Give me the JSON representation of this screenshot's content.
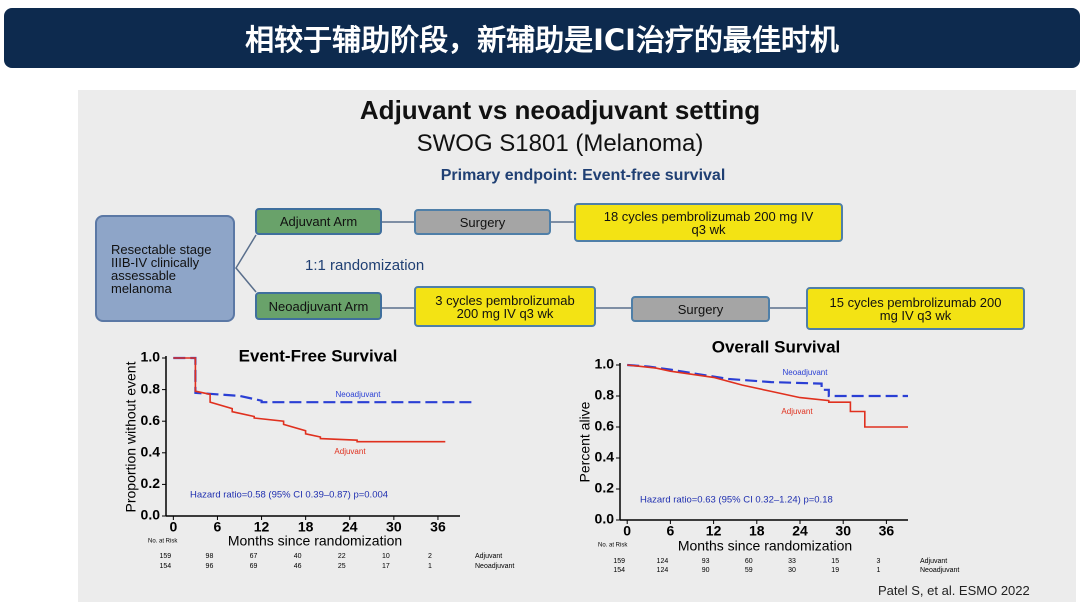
{
  "header": {
    "title": "相较于辅助阶段，新辅助是ICI治疗的最佳时机"
  },
  "slide": {
    "title": "Adjuvant vs neoadjuvant setting",
    "subtitle": "SWOG S1801 (Melanoma)",
    "endpoint": "Primary endpoint: Event-free survival",
    "citation": "Patel S, et al. ESMO 2022"
  },
  "diagram": {
    "population": "Resectable stage IIIB-IV clinically assessable melanoma",
    "randomization": "1:1 randomization",
    "adjuvant": [
      "Adjuvant Arm",
      "Surgery",
      "18 cycles pembrolizumab 200 mg IV q3 wk"
    ],
    "neoadjuvant": [
      "Neoadjuvant Arm",
      "3 cycles pembrolizumab 200 mg IV q3 wk",
      "Surgery",
      "15 cycles pembrolizumab 200 mg IV q3 wk"
    ]
  },
  "chart_data": [
    {
      "type": "line",
      "title": "Event-Free Survival",
      "x_label": "Months since randomization",
      "y_label": "Proportion without event",
      "annotation": "Hazard ratio=0.58 (95% CI 0.39–0.87) p=0.004",
      "xlim": [
        -1,
        39
      ],
      "xticks": [
        0,
        6,
        12,
        18,
        24,
        30,
        36
      ],
      "ylim": [
        0,
        1
      ],
      "yticks": [
        {
          "value": 0,
          "label": "0.0"
        },
        0.2,
        0.4,
        0.6,
        0.8,
        {
          "value": 1,
          "label": "1.0"
        }
      ],
      "series": [
        {
          "name": "Neoadjuvant",
          "color": "#2a3fd4",
          "line_style": "dashed",
          "x": [
            0,
            3,
            3,
            9,
            9,
            12,
            12,
            41
          ],
          "values": [
            1,
            1,
            0.78,
            0.76,
            0.76,
            0.73,
            0.72,
            0.72
          ]
        },
        {
          "name": "Adjuvant",
          "color": "#e0301e",
          "line_style": "solid",
          "x": [
            0,
            3,
            3,
            5,
            5,
            8,
            8,
            11,
            11,
            15,
            15,
            18,
            18,
            20,
            20,
            25,
            25,
            37
          ],
          "values": [
            1,
            1,
            0.79,
            0.77,
            0.72,
            0.68,
            0.66,
            0.63,
            0.62,
            0.6,
            0.58,
            0.54,
            0.52,
            0.5,
            0.49,
            0.48,
            0.47,
            0.47
          ]
        }
      ],
      "at_risk": {
        "label": "No. at Risk",
        "rows": [
          {
            "name": "Adjuvant",
            "counts": [
              159,
              98,
              67,
              40,
              22,
              10,
              2
            ]
          },
          {
            "name": "Neoadjuvant",
            "counts": [
              154,
              96,
              69,
              46,
              25,
              17,
              1
            ]
          }
        ]
      }
    },
    {
      "type": "line",
      "title": "Overall Survival",
      "x_label": "Months since randomization",
      "y_label": "Percent alive",
      "annotation": "Hazard ratio=0.63 (95% CI 0.32–1.24) p=0.18",
      "xlim": [
        -1,
        39
      ],
      "xticks": [
        0,
        6,
        12,
        18,
        24,
        30,
        36
      ],
      "ylim": [
        0,
        1
      ],
      "yticks": [
        {
          "value": 0,
          "label": "0.0"
        },
        0.2,
        0.4,
        0.6,
        0.8,
        {
          "value": 1,
          "label": "1.0"
        }
      ],
      "series": [
        {
          "name": "Neoadjuvant",
          "color": "#2a3fd4",
          "line_style": "dashed",
          "x": [
            0,
            3,
            6,
            10,
            14,
            20,
            27,
            27,
            28,
            28,
            39
          ],
          "values": [
            1,
            0.99,
            0.97,
            0.94,
            0.91,
            0.89,
            0.88,
            0.84,
            0.84,
            0.8,
            0.8
          ]
        },
        {
          "name": "Adjuvant",
          "color": "#e0301e",
          "line_style": "solid",
          "x": [
            0,
            4,
            6,
            9,
            12,
            16,
            20,
            24,
            28,
            28,
            31,
            31,
            33,
            33,
            39
          ],
          "values": [
            1,
            0.98,
            0.96,
            0.94,
            0.92,
            0.87,
            0.83,
            0.79,
            0.77,
            0.76,
            0.76,
            0.7,
            0.7,
            0.6,
            0.6
          ]
        }
      ],
      "at_risk": {
        "label": "No. at Risk",
        "rows": [
          {
            "name": "Adjuvant",
            "counts": [
              159,
              124,
              93,
              60,
              33,
              15,
              3
            ]
          },
          {
            "name": "Neoadjuvant",
            "counts": [
              154,
              124,
              90,
              59,
              30,
              19,
              1
            ]
          }
        ]
      }
    }
  ]
}
